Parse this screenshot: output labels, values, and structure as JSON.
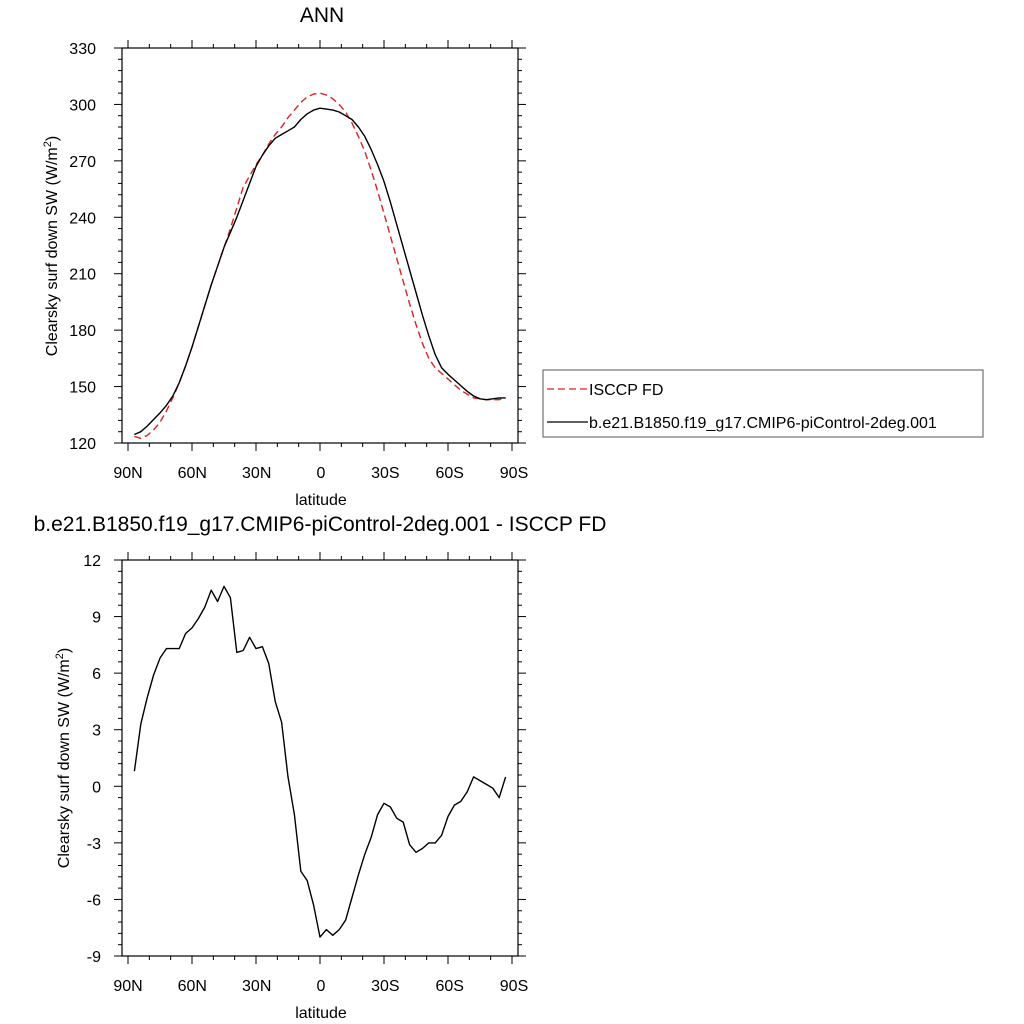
{
  "colors": {
    "model": "#000000",
    "obs": "#e02020",
    "background": "#ffffff"
  },
  "chart_data": [
    {
      "type": "line",
      "title": "ANN",
      "xlabel": "latitude",
      "ylabel_main": "Clearsky surf down SW (W/m",
      "ylabel_sup": "2",
      "ylabel_close": ")",
      "xlim": [
        90,
        -90
      ],
      "ylim": [
        120,
        330
      ],
      "xticks": [
        90,
        60,
        30,
        0,
        -30,
        -60,
        -90
      ],
      "xtick_labels": [
        "90N",
        "60N",
        "30N",
        "0",
        "30S",
        "60S",
        "90S"
      ],
      "yticks": [
        120,
        150,
        180,
        210,
        240,
        270,
        300,
        330
      ],
      "ytick_labels": [
        "120",
        "150",
        "180",
        "210",
        "240",
        "270",
        "300",
        "330"
      ],
      "grid": false,
      "legend_position": "right",
      "series": [
        {
          "name": "ISCCP FD",
          "style": "dashed",
          "color": "#e02020",
          "x": [
            87,
            84,
            81,
            78,
            75,
            72,
            69,
            66,
            63,
            60,
            57,
            54,
            51,
            48,
            45,
            42,
            39,
            36,
            33,
            30,
            27,
            24,
            21,
            18,
            15,
            12,
            9,
            6,
            3,
            0,
            -3,
            -6,
            -9,
            -12,
            -15,
            -18,
            -21,
            -24,
            -27,
            -30,
            -33,
            -36,
            -39,
            -42,
            -45,
            -48,
            -51,
            -54,
            -57,
            -60,
            -63,
            -66,
            -69,
            -72,
            -75,
            -78,
            -81,
            -84,
            -87
          ],
          "y": [
            123.5,
            122.5,
            124,
            127,
            131,
            137,
            144,
            152,
            161,
            171,
            182,
            193,
            204,
            214,
            224,
            234,
            245,
            256,
            262,
            268,
            273,
            279,
            284,
            288,
            293,
            297,
            301,
            304,
            305.5,
            306,
            305,
            303,
            300,
            296,
            290,
            283,
            275,
            265,
            254,
            242,
            230,
            218,
            206,
            194,
            183,
            173,
            165,
            160,
            157,
            154,
            151,
            148,
            146,
            144,
            143.5,
            143,
            143,
            143,
            144
          ]
        },
        {
          "name": "b.e21.B1850.f19_g17.CMIP6-piControl-2deg.001",
          "style": "solid",
          "color": "#000000",
          "x": [
            87,
            84,
            81,
            78,
            75,
            72,
            69,
            66,
            63,
            60,
            57,
            54,
            51,
            48,
            45,
            42,
            39,
            36,
            33,
            30,
            27,
            24,
            21,
            18,
            15,
            12,
            9,
            6,
            3,
            0,
            -3,
            -6,
            -9,
            -12,
            -15,
            -18,
            -21,
            -24,
            -27,
            -30,
            -33,
            -36,
            -39,
            -42,
            -45,
            -48,
            -51,
            -54,
            -57,
            -60,
            -63,
            -66,
            -69,
            -72,
            -75,
            -78,
            -81,
            -84,
            -87
          ],
          "y": [
            124.5,
            126,
            129,
            132.5,
            136,
            140,
            145,
            152,
            161,
            171,
            182,
            193,
            204,
            214,
            224,
            232,
            240,
            249,
            258,
            267,
            273,
            278,
            282,
            284,
            286,
            288,
            292,
            295,
            297,
            298,
            297.5,
            297,
            296,
            294,
            292,
            288,
            283,
            276,
            268,
            259,
            248,
            236,
            224,
            212,
            200,
            188,
            177,
            167,
            160,
            156.5,
            153.5,
            150.5,
            147.5,
            145,
            143.5,
            143,
            143.5,
            144,
            144
          ]
        }
      ]
    },
    {
      "type": "line",
      "title": "b.e21.B1850.f19_g17.CMIP6-piControl-2deg.001 - ISCCP FD",
      "xlabel": "latitude",
      "ylabel_main": "Clearsky surf down SW (W/m",
      "ylabel_sup": "2",
      "ylabel_close": ")",
      "xlim": [
        90,
        -90
      ],
      "ylim": [
        -9,
        12
      ],
      "xticks": [
        90,
        60,
        30,
        0,
        -30,
        -60,
        -90
      ],
      "xtick_labels": [
        "90N",
        "60N",
        "30N",
        "0",
        "30S",
        "60S",
        "90S"
      ],
      "yticks": [
        -9,
        -6,
        -3,
        0,
        3,
        6,
        9,
        12
      ],
      "ytick_labels": [
        "-9",
        "-6",
        "-3",
        "0",
        "3",
        "6",
        "9",
        "12"
      ],
      "grid": false,
      "series": [
        {
          "style": "solid",
          "color": "#000000",
          "x": [
            87,
            84,
            81,
            78,
            75,
            72,
            69,
            66,
            63,
            60,
            57,
            54,
            51,
            48,
            45,
            42,
            39,
            36,
            33,
            30,
            27,
            24,
            21,
            18,
            15,
            12,
            9,
            6,
            3,
            0,
            -3,
            -6,
            -9,
            -12,
            -15,
            -18,
            -21,
            -24,
            -27,
            -30,
            -33,
            -36,
            -39,
            -42,
            -45,
            -48,
            -51,
            -54,
            -57,
            -60,
            -63,
            -66,
            -69,
            -72,
            -75,
            -78,
            -81,
            -84,
            -87
          ],
          "y": [
            0.8,
            3.3,
            4.7,
            5.9,
            6.8,
            7.3,
            7.3,
            7.3,
            8.1,
            8.4,
            8.9,
            9.5,
            10.4,
            9.8,
            10.6,
            10.0,
            7.1,
            7.2,
            7.9,
            7.3,
            7.4,
            6.5,
            4.5,
            3.4,
            0.5,
            -1.5,
            -4.5,
            -5.0,
            -6.3,
            -8.0,
            -7.6,
            -7.9,
            -7.6,
            -7.1,
            -5.9,
            -4.7,
            -3.6,
            -2.7,
            -1.5,
            -0.9,
            -1.1,
            -1.7,
            -1.9,
            -3.1,
            -3.5,
            -3.3,
            -3.0,
            -3.0,
            -2.6,
            -1.6,
            -1.0,
            -0.8,
            -0.3,
            0.5,
            0.3,
            0.1,
            -0.1,
            -0.6,
            0.5
          ]
        }
      ]
    }
  ]
}
